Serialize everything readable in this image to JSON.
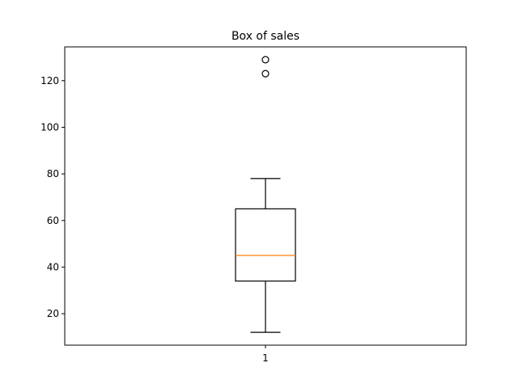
{
  "chart_data": {
    "type": "box",
    "title": "Box of sales",
    "xlabel": "",
    "ylabel": "",
    "categories": [
      "1"
    ],
    "ylim": [
      6.5,
      134.5
    ],
    "y_ticks": [
      20,
      40,
      60,
      80,
      100,
      120
    ],
    "grid": false,
    "boxes": [
      {
        "category": "1",
        "whisker_low": 12,
        "q1": 34,
        "median": 45,
        "q3": 65,
        "whisker_high": 78,
        "outliers": [
          123,
          129
        ]
      }
    ],
    "colors": {
      "box": "#000000",
      "median": "#ff7f0e",
      "outlier": "#000000"
    }
  }
}
